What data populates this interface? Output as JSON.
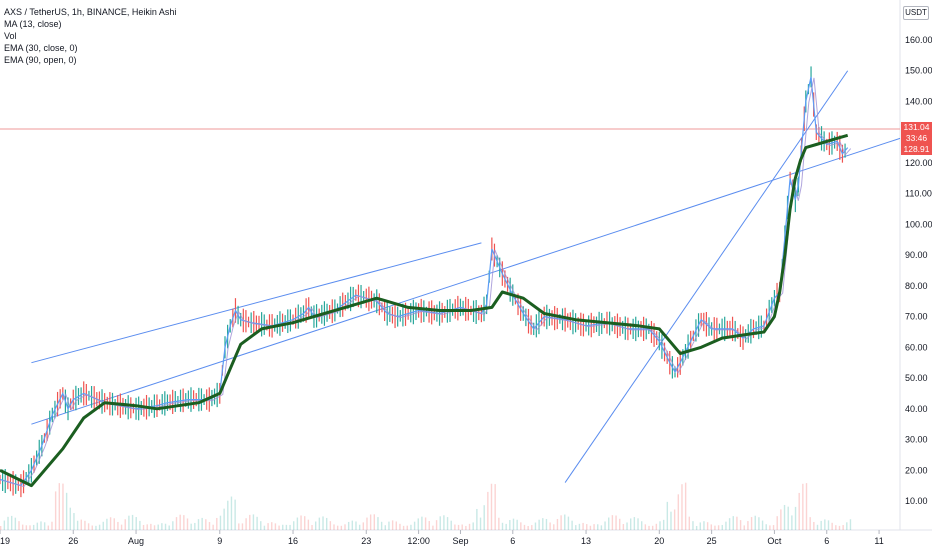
{
  "legend": {
    "title": "AXS / TetherUS, 1h, BINANCE, Heikin Ashi",
    "ma": "MA (13, close)",
    "vol": "Vol",
    "ema30": "EMA (30, close, 0)",
    "ema90": "EMA (90, open, 0)"
  },
  "currency": "USDT",
  "price_tags": {
    "last": "131.04",
    "countdown": "33:46",
    "ema": "128.91"
  },
  "colors": {
    "up": "#26a69a",
    "down": "#ef5350",
    "ma13": "#5b9cf6",
    "ema30": "#9c8fd4",
    "ema90": "#1b5e20",
    "trendline": "#5b8def",
    "price_line": "#ef9a9a"
  },
  "chart_data": {
    "type": "line",
    "title": "AXS / TetherUS, 1h, BINANCE, Heikin Ashi",
    "xlabel": "",
    "ylabel": "",
    "ylim": [
      0,
      160
    ],
    "y_ticks": [
      10,
      20,
      30,
      40,
      50,
      60,
      70,
      80,
      90,
      100,
      110,
      120,
      130,
      140,
      150,
      160
    ],
    "x_tick_labels": [
      "19",
      "26",
      "Aug",
      "9",
      "16",
      "23",
      "12:00",
      "Sep",
      "6",
      "13",
      "20",
      "25",
      "Oct",
      "6",
      "11"
    ],
    "x_tick_days": [
      0,
      7,
      13,
      21,
      28,
      35,
      40,
      44,
      49,
      56,
      63,
      68,
      74,
      79,
      84
    ],
    "x_range_days": [
      0,
      86
    ],
    "x_axis_start": "Jul 19",
    "series": [
      {
        "key": "price",
        "days": [
          0,
          2,
          3,
          4,
          5,
          6,
          6.5,
          7,
          8,
          10,
          13,
          15,
          16,
          18,
          20,
          21,
          21.5,
          22,
          22.5,
          23,
          24,
          26,
          28,
          29,
          29.5,
          30,
          32,
          34,
          35,
          36,
          37,
          38,
          40,
          42,
          44,
          46,
          46.5,
          47,
          48,
          49,
          50,
          51,
          52,
          54,
          56,
          58,
          60,
          62,
          63,
          64,
          64.5,
          65,
          66,
          67,
          68,
          70,
          71,
          72,
          73,
          74,
          74.5,
          75,
          75.5,
          76,
          76.3,
          76.6,
          77,
          77.5,
          78,
          79,
          80,
          80.5,
          81
        ],
        "values": [
          17,
          15,
          20,
          28,
          38,
          45,
          40,
          43,
          45,
          42,
          40,
          41,
          42,
          43,
          43,
          45,
          60,
          67,
          72,
          69,
          68,
          67,
          69,
          71,
          73,
          70,
          72,
          77,
          76,
          75,
          71,
          70,
          72,
          71,
          73,
          71,
          74,
          92,
          84,
          77,
          71,
          66,
          70,
          69,
          67,
          68,
          66,
          66,
          62,
          55,
          52,
          55,
          62,
          69,
          66,
          66,
          63,
          66,
          67,
          76,
          78,
          96,
          115,
          108,
          113,
          125,
          140,
          148,
          130,
          126,
          127,
          123,
          125
        ]
      },
      {
        "key": "ema90",
        "days": [
          0,
          3,
          6,
          8,
          10,
          13,
          15,
          19,
          21,
          22,
          23,
          25,
          28,
          31,
          33,
          36,
          39,
          42,
          45,
          47,
          48,
          50,
          52,
          55,
          58,
          61,
          63,
          64,
          65,
          67,
          69,
          71,
          73,
          74,
          74.5,
          75,
          75.5,
          76,
          76.5,
          77,
          78,
          79,
          80,
          81
        ],
        "values": [
          20,
          15,
          27,
          37,
          42,
          41,
          40,
          42,
          45,
          53,
          61,
          66,
          68,
          71,
          73,
          76,
          73,
          72,
          72,
          73,
          78,
          76,
          71,
          69,
          68,
          67,
          66,
          62,
          58,
          60,
          63,
          64,
          65,
          70,
          78,
          90,
          105,
          115,
          121,
          125,
          126,
          127,
          128,
          129
        ]
      }
    ],
    "trendlines": [
      {
        "from": [
          3,
          55
        ],
        "to": [
          46,
          94
        ]
      },
      {
        "from": [
          3,
          35
        ],
        "to": [
          86,
          128
        ]
      },
      {
        "from": [
          54,
          16
        ],
        "to": [
          81,
          150
        ]
      }
    ],
    "current_price": 131.04,
    "current_ema": 128.91
  }
}
